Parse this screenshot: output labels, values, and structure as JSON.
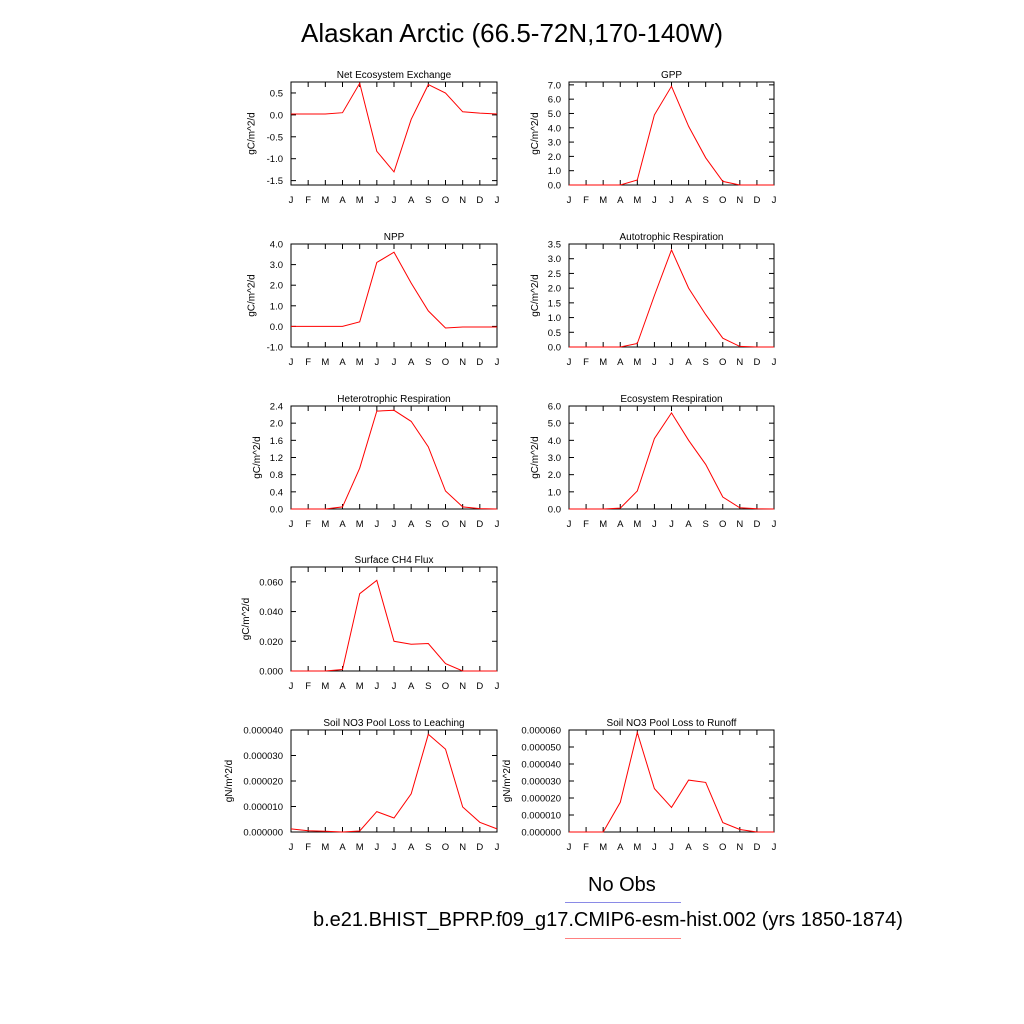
{
  "title": "Alaskan Arctic (66.5-72N,170-140W)",
  "months": [
    "J",
    "F",
    "M",
    "A",
    "M",
    "J",
    "J",
    "A",
    "S",
    "O",
    "N",
    "D",
    "J"
  ],
  "chart_data": [
    {
      "type": "line",
      "title": "Net Ecosystem Exchange",
      "ylabel": "gC/m^2/d",
      "ylim": [
        -1.6,
        0.75
      ],
      "yticks": [
        0.5,
        0.0,
        -0.5,
        -1.0,
        -1.5
      ],
      "ytick_labels": [
        "0.5",
        "0.0",
        "-0.5",
        "-1.0",
        "-1.5"
      ],
      "series": [
        {
          "color": "#ff0000",
          "values": [
            0.02,
            0.02,
            0.02,
            0.05,
            0.72,
            -0.83,
            -1.3,
            -0.1,
            0.69,
            0.5,
            0.07,
            0.04,
            0.02
          ]
        }
      ]
    },
    {
      "type": "line",
      "title": "GPP",
      "ylabel": "gC/m^2/d",
      "ylim": [
        0,
        7.2
      ],
      "yticks": [
        7,
        6,
        5,
        4,
        3,
        2,
        1,
        0
      ],
      "ytick_labels": [
        "7.0",
        "6.0",
        "5.0",
        "4.0",
        "3.0",
        "2.0",
        "1.0",
        "0.0"
      ],
      "series": [
        {
          "color": "#ff0000",
          "values": [
            0,
            0,
            0,
            0,
            0.35,
            4.9,
            6.9,
            4.1,
            1.9,
            0.25,
            0,
            0,
            0
          ]
        }
      ]
    },
    {
      "type": "line",
      "title": "NPP",
      "ylabel": "gC/m^2/d",
      "ylim": [
        -1,
        4
      ],
      "yticks": [
        4,
        3,
        2,
        1,
        0,
        -1
      ],
      "ytick_labels": [
        "4.0",
        "3.0",
        "2.0",
        "1.0",
        "0.0",
        "-1.0"
      ],
      "series": [
        {
          "color": "#ff0000",
          "values": [
            0,
            0,
            0,
            0,
            0.22,
            3.1,
            3.6,
            2.1,
            0.75,
            -0.08,
            -0.03,
            -0.03,
            -0.03
          ]
        }
      ]
    },
    {
      "type": "line",
      "title": "Autotrophic Respiration",
      "ylabel": "gC/m^2/d",
      "ylim": [
        0,
        3.5
      ],
      "yticks": [
        3.5,
        3.0,
        2.5,
        2.0,
        1.5,
        1.0,
        0.5,
        0.0
      ],
      "ytick_labels": [
        "3.5",
        "3.0",
        "2.5",
        "2.0",
        "1.5",
        "1.0",
        "0.5",
        "0.0"
      ],
      "series": [
        {
          "color": "#ff0000",
          "values": [
            0,
            0,
            0,
            0,
            0.12,
            1.75,
            3.3,
            2.0,
            1.1,
            0.3,
            0.02,
            0,
            0
          ]
        }
      ]
    },
    {
      "type": "line",
      "title": "Heterotrophic Respiration",
      "ylabel": "gC/m^2/d",
      "ylim": [
        0,
        2.4
      ],
      "yticks": [
        2.4,
        2.0,
        1.6,
        1.2,
        0.8,
        0.4,
        0.0
      ],
      "ytick_labels": [
        "2.4",
        "2.0",
        "1.6",
        "1.2",
        "0.8",
        "0.4",
        "0.0"
      ],
      "series": [
        {
          "color": "#ff0000",
          "values": [
            0,
            0,
            0,
            0.05,
            0.95,
            2.28,
            2.3,
            2.04,
            1.45,
            0.42,
            0.05,
            0.01,
            0
          ]
        }
      ]
    },
    {
      "type": "line",
      "title": "Ecosystem Respiration",
      "ylabel": "gC/m^2/d",
      "ylim": [
        0,
        6
      ],
      "yticks": [
        6,
        5,
        4,
        3,
        2,
        1,
        0
      ],
      "ytick_labels": [
        "6.0",
        "5.0",
        "4.0",
        "3.0",
        "2.0",
        "1.0",
        "0.0"
      ],
      "series": [
        {
          "color": "#ff0000",
          "values": [
            0,
            0,
            0,
            0.05,
            1.05,
            4.1,
            5.6,
            4.0,
            2.6,
            0.7,
            0.07,
            0.01,
            0
          ]
        }
      ]
    },
    {
      "type": "line",
      "title": "Surface CH4 Flux",
      "ylabel": "gC/m^2/d",
      "ylim": [
        0,
        0.07
      ],
      "yticks": [
        0.06,
        0.04,
        0.02,
        0
      ],
      "ytick_labels": [
        "0.060",
        "0.040",
        "0.020",
        "0.000"
      ],
      "series": [
        {
          "color": "#ff0000",
          "values": [
            0,
            0,
            0,
            0.001,
            0.052,
            0.061,
            0.02,
            0.018,
            0.0185,
            0.005,
            0,
            0,
            0
          ]
        }
      ]
    },
    {
      "type": "line",
      "title": "Soil NO3 Pool Loss to Leaching",
      "ylabel": "gN/m^2/d",
      "ylim": [
        0,
        4e-05
      ],
      "yticks": [
        4e-05,
        3e-05,
        2e-05,
        1e-05,
        0
      ],
      "ytick_labels": [
        "0.000040",
        "0.000030",
        "0.000020",
        "0.000010",
        "0.000000"
      ],
      "series": [
        {
          "color": "#ff0000",
          "values": [
            1.2e-06,
            5e-07,
            3e-07,
            0,
            4e-07,
            8e-06,
            5.5e-06,
            1.5e-05,
            3.83e-05,
            3.25e-05,
            9.8e-06,
            3.8e-06,
            1.2e-06
          ]
        }
      ]
    },
    {
      "type": "line",
      "title": "Soil NO3 Pool Loss to Runoff",
      "ylabel": "gN/m^2/d",
      "ylim": [
        0,
        6e-05
      ],
      "yticks": [
        6e-05,
        5e-05,
        4e-05,
        3e-05,
        2e-05,
        1e-05,
        0
      ],
      "ytick_labels": [
        "0.000060",
        "0.000050",
        "0.000040",
        "0.000030",
        "0.000020",
        "0.000010",
        "0.000000"
      ],
      "series": [
        {
          "color": "#ff0000",
          "values": [
            0,
            0,
            0,
            1.75e-05,
            5.85e-05,
            2.55e-05,
            1.45e-05,
            3.05e-05,
            2.92e-05,
            5.5e-06,
            1.5e-06,
            0,
            0
          ]
        }
      ]
    }
  ],
  "legend": {
    "obs_label": "No Obs",
    "obs_color": "#8a8ae6",
    "model_label": "b.e21.BHIST_BPRP.f09_g17.CMIP6-esm-hist.002 (yrs 1850-1874)",
    "model_color": "#ff8080"
  }
}
